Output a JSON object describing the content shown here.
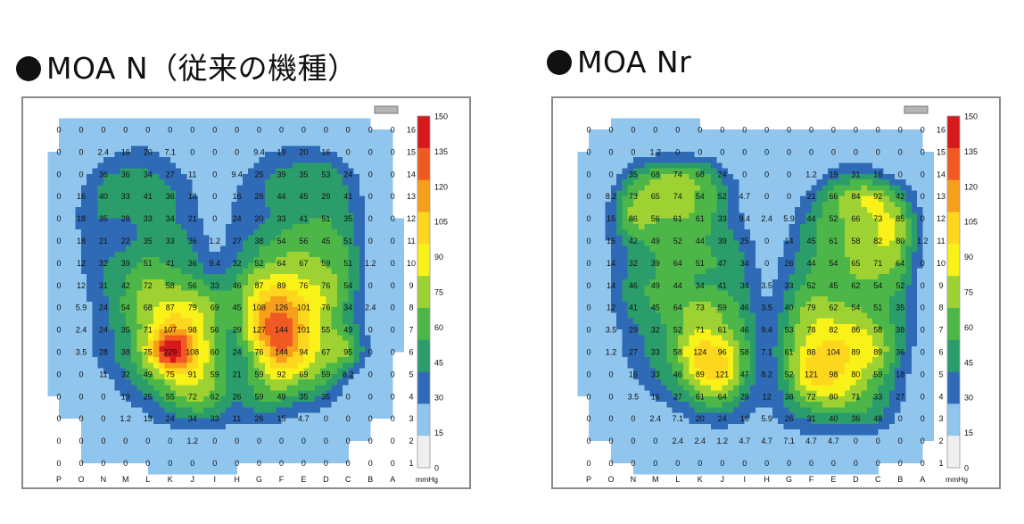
{
  "chart_data": [
    {
      "type": "heatmap",
      "title": "MOA N（従来の機種）",
      "columns": [
        "P",
        "O",
        "N",
        "M",
        "L",
        "K",
        "J",
        "I",
        "H",
        "G",
        "F",
        "E",
        "D",
        "C",
        "B",
        "A"
      ],
      "rows": [
        "16",
        "15",
        "14",
        "13",
        "12",
        "11",
        "10",
        "9",
        "8",
        "7",
        "6",
        "5",
        "4",
        "3",
        "2",
        "1"
      ],
      "values": [
        [
          "0",
          "0",
          "0",
          "0",
          "0",
          "0",
          "0",
          "0",
          "0",
          "0",
          "0",
          "0",
          "0",
          "0",
          "0",
          "0"
        ],
        [
          "0",
          "0",
          "2.4",
          "16",
          "20",
          "7.1",
          "0",
          "0",
          "0",
          "9.4",
          "19",
          "20",
          "16",
          "0",
          "0",
          "0"
        ],
        [
          "0",
          "0",
          "36",
          "36",
          "34",
          "27",
          "11",
          "0",
          "9.4",
          "25",
          "39",
          "35",
          "53",
          "24",
          "0",
          "0"
        ],
        [
          "0",
          "16",
          "40",
          "33",
          "41",
          "36",
          "18",
          "0",
          "16",
          "28",
          "44",
          "45",
          "29",
          "41",
          "0",
          "0"
        ],
        [
          "0",
          "18",
          "35",
          "28",
          "33",
          "34",
          "21",
          "0",
          "24",
          "20",
          "33",
          "41",
          "51",
          "35",
          "0",
          "0"
        ],
        [
          "0",
          "18",
          "21",
          "22",
          "35",
          "33",
          "36",
          "1.2",
          "27",
          "38",
          "54",
          "56",
          "45",
          "51",
          "0",
          "0"
        ],
        [
          "0",
          "12",
          "32",
          "39",
          "51",
          "41",
          "36",
          "9.4",
          "32",
          "52",
          "64",
          "67",
          "59",
          "51",
          "1.2",
          "0"
        ],
        [
          "0",
          "12",
          "31",
          "42",
          "72",
          "58",
          "56",
          "33",
          "46",
          "87",
          "89",
          "76",
          "76",
          "54",
          "0",
          "0"
        ],
        [
          "0",
          "5.9",
          "24",
          "54",
          "68",
          "87",
          "79",
          "69",
          "45",
          "108",
          "126",
          "101",
          "76",
          "34",
          "2.4",
          "0"
        ],
        [
          "0",
          "2.4",
          "24",
          "35",
          "71",
          "107",
          "98",
          "56",
          "29",
          "127",
          "144",
          "101",
          "55",
          "49",
          "0",
          "0"
        ],
        [
          "0",
          "3.5",
          "28",
          "38",
          "75",
          "229",
          "108",
          "60",
          "24",
          "76",
          "144",
          "94",
          "67",
          "95",
          "0",
          "0"
        ],
        [
          "0",
          "0",
          "11",
          "32",
          "49",
          "75",
          "91",
          "59",
          "21",
          "59",
          "92",
          "69",
          "59",
          "8.2",
          "0",
          "0"
        ],
        [
          "0",
          "0",
          "0",
          "19",
          "25",
          "55",
          "72",
          "62",
          "26",
          "59",
          "49",
          "35",
          "35",
          "0",
          "0",
          "0"
        ],
        [
          "0",
          "0",
          "0",
          "1.2",
          "13",
          "24",
          "34",
          "33",
          "11",
          "26",
          "15",
          "4.7",
          "0",
          "0",
          "0",
          "0"
        ],
        [
          "0",
          "0",
          "0",
          "0",
          "0",
          "0",
          "1.2",
          "0",
          "0",
          "0",
          "0",
          "0",
          "0",
          "0",
          "0",
          "0"
        ],
        [
          "0",
          "0",
          "0",
          "0",
          "0",
          "0",
          "0",
          "0",
          "0",
          "0",
          "0",
          "0",
          "0",
          "0",
          "0",
          "0"
        ]
      ],
      "colorbar": {
        "unit": "mmHg",
        "ticks": [
          "150",
          "135",
          "120",
          "105",
          "90",
          "75",
          "60",
          "45",
          "30",
          "15",
          "0"
        ],
        "colors": [
          "#d7191c",
          "#f05a22",
          "#f79e1b",
          "#fdd71d",
          "#f9f219",
          "#9dd232",
          "#4cb748",
          "#2a9d6a",
          "#2e6ab5",
          "#90c5ed",
          "#efefef"
        ]
      }
    },
    {
      "type": "heatmap",
      "title": "MOA Nr",
      "columns": [
        "P",
        "O",
        "N",
        "M",
        "L",
        "K",
        "J",
        "I",
        "H",
        "G",
        "F",
        "E",
        "D",
        "C",
        "B",
        "A"
      ],
      "rows": [
        "16",
        "15",
        "14",
        "13",
        "12",
        "11",
        "10",
        "9",
        "8",
        "7",
        "6",
        "5",
        "4",
        "3",
        "2",
        "1"
      ],
      "values": [
        [
          "0",
          "0",
          "0",
          "0",
          "0",
          "0",
          "0",
          "0",
          "0",
          "0",
          "0",
          "0",
          "0",
          "0",
          "0",
          "0"
        ],
        [
          "0",
          "0",
          "0",
          "1.2",
          "0",
          "0",
          "0",
          "0",
          "0",
          "0",
          "0",
          "0",
          "0",
          "0",
          "0",
          "0"
        ],
        [
          "0",
          "0",
          "35",
          "68",
          "74",
          "68",
          "24",
          "0",
          "0",
          "0",
          "1.2",
          "19",
          "31",
          "16",
          "0",
          "0"
        ],
        [
          "0",
          "8.2",
          "73",
          "65",
          "74",
          "54",
          "52",
          "4.7",
          "0",
          "0",
          "21",
          "66",
          "84",
          "92",
          "42",
          "0"
        ],
        [
          "0",
          "15",
          "86",
          "56",
          "61",
          "61",
          "33",
          "9.4",
          "2.4",
          "5.9",
          "44",
          "52",
          "66",
          "73",
          "85",
          "0"
        ],
        [
          "0",
          "15",
          "42",
          "49",
          "52",
          "44",
          "39",
          "25",
          "0",
          "14",
          "45",
          "61",
          "58",
          "82",
          "80",
          "1.2"
        ],
        [
          "0",
          "14",
          "32",
          "39",
          "64",
          "51",
          "47",
          "34",
          "0",
          "26",
          "44",
          "54",
          "65",
          "71",
          "64",
          "0"
        ],
        [
          "0",
          "14",
          "46",
          "49",
          "44",
          "34",
          "41",
          "34",
          "3.5",
          "33",
          "52",
          "45",
          "62",
          "54",
          "52",
          "0"
        ],
        [
          "0",
          "12",
          "41",
          "45",
          "64",
          "73",
          "59",
          "46",
          "3.5",
          "40",
          "79",
          "62",
          "54",
          "51",
          "35",
          "0"
        ],
        [
          "0",
          "3.5",
          "29",
          "32",
          "52",
          "71",
          "61",
          "46",
          "9.4",
          "53",
          "78",
          "82",
          "86",
          "58",
          "38",
          "0"
        ],
        [
          "0",
          "1.2",
          "27",
          "33",
          "58",
          "124",
          "96",
          "58",
          "7.1",
          "61",
          "88",
          "104",
          "89",
          "89",
          "36",
          "0"
        ],
        [
          "0",
          "0",
          "16",
          "33",
          "46",
          "89",
          "121",
          "47",
          "8.2",
          "52",
          "121",
          "98",
          "80",
          "59",
          "18",
          "0"
        ],
        [
          "0",
          "0",
          "3.5",
          "16",
          "27",
          "61",
          "64",
          "29",
          "12",
          "38",
          "72",
          "80",
          "71",
          "33",
          "27",
          "0"
        ],
        [
          "0",
          "0",
          "0",
          "2.4",
          "7.1",
          "20",
          "24",
          "16",
          "5.9",
          "26",
          "31",
          "40",
          "36",
          "48",
          "0",
          "0"
        ],
        [
          "0",
          "0",
          "0",
          "0",
          "2.4",
          "2.4",
          "1.2",
          "4.7",
          "4.7",
          "7.1",
          "4.7",
          "4.7",
          "0",
          "0",
          "0",
          "0"
        ],
        [
          "0",
          "0",
          "0",
          "0",
          "0",
          "0",
          "0",
          "0",
          "0",
          "0",
          "0",
          "0",
          "0",
          "0",
          "0",
          "0"
        ]
      ],
      "colorbar": {
        "unit": "mmHg",
        "ticks": [
          "150",
          "135",
          "120",
          "105",
          "90",
          "75",
          "60",
          "45",
          "30",
          "15",
          "0"
        ],
        "colors": [
          "#d7191c",
          "#f05a22",
          "#f79e1b",
          "#fdd71d",
          "#f9f219",
          "#9dd232",
          "#4cb748",
          "#2a9d6a",
          "#2e6ab5",
          "#90c5ed",
          "#efefef"
        ]
      }
    }
  ]
}
